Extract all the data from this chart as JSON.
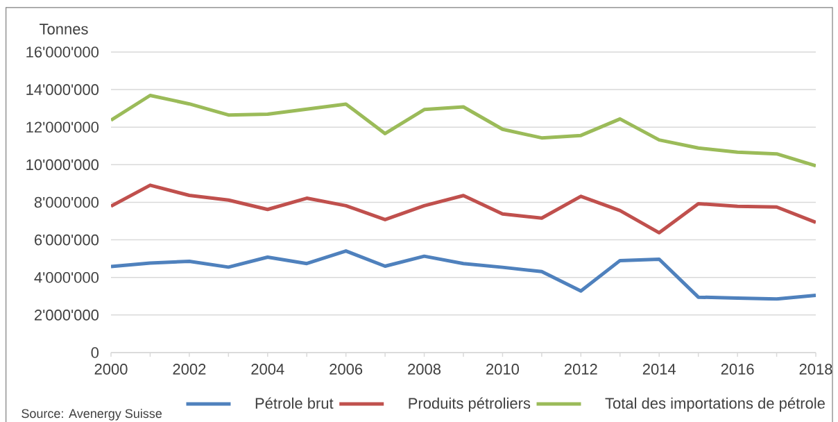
{
  "chart_data": {
    "type": "line",
    "ylabel": "Tonnes",
    "x": [
      2000,
      2001,
      2002,
      2003,
      2004,
      2005,
      2006,
      2007,
      2008,
      2009,
      2010,
      2011,
      2012,
      2013,
      2014,
      2015,
      2016,
      2017,
      2018
    ],
    "xlim": [
      2000,
      2018
    ],
    "xticks": [
      2000,
      {
        "value": 2001,
        "label": null
      },
      2002,
      {
        "value": 2003,
        "label": null
      },
      2004,
      {
        "value": 2005,
        "label": null
      },
      2006,
      {
        "value": 2007,
        "label": null
      },
      2008,
      {
        "value": 2009,
        "label": null
      },
      2010,
      {
        "value": 2011,
        "label": null
      },
      2012,
      {
        "value": 2013,
        "label": null
      },
      2014,
      {
        "value": 2015,
        "label": null
      },
      2016,
      {
        "value": 2017,
        "label": null
      },
      2018
    ],
    "ylim": [
      0,
      16000000
    ],
    "yticks": [
      0,
      {
        "value": 2000000,
        "label": "2'000'000"
      },
      {
        "value": 4000000,
        "label": "4'000'000"
      },
      {
        "value": 6000000,
        "label": "6'000'000"
      },
      {
        "value": 8000000,
        "label": "8'000'000"
      },
      {
        "value": 10000000,
        "label": "10'000'000"
      },
      {
        "value": 12000000,
        "label": "12'000'000"
      },
      {
        "value": 14000000,
        "label": "14'000'000"
      },
      {
        "value": 16000000,
        "label": "16'000'000"
      }
    ],
    "grid": "y",
    "legend": "bottom",
    "series": [
      {
        "name": "Pétrole brut",
        "color": "#4f81bd",
        "values": [
          4580000,
          4770000,
          4860000,
          4550000,
          5080000,
          4740000,
          5410000,
          4600000,
          5130000,
          4740000,
          4540000,
          4310000,
          3280000,
          4900000,
          4970000,
          2950000,
          2900000,
          2850000,
          3050000
        ]
      },
      {
        "name": "Produits pétroliers",
        "color": "#c0504d",
        "values": [
          7790000,
          8910000,
          8370000,
          8120000,
          7620000,
          8220000,
          7820000,
          7080000,
          7820000,
          8360000,
          7380000,
          7160000,
          8320000,
          7560000,
          6380000,
          7930000,
          7790000,
          7750000,
          6930000
        ]
      },
      {
        "name": "Total des importations de pétrole",
        "color": "#9bbb59",
        "values": [
          12370000,
          13690000,
          13240000,
          12650000,
          12690000,
          12960000,
          13230000,
          11660000,
          12940000,
          13080000,
          11890000,
          11430000,
          11560000,
          12440000,
          11320000,
          10890000,
          10670000,
          10580000,
          9940000
        ]
      }
    ],
    "annotations": [
      "Source: Avenergy Suisse"
    ]
  }
}
